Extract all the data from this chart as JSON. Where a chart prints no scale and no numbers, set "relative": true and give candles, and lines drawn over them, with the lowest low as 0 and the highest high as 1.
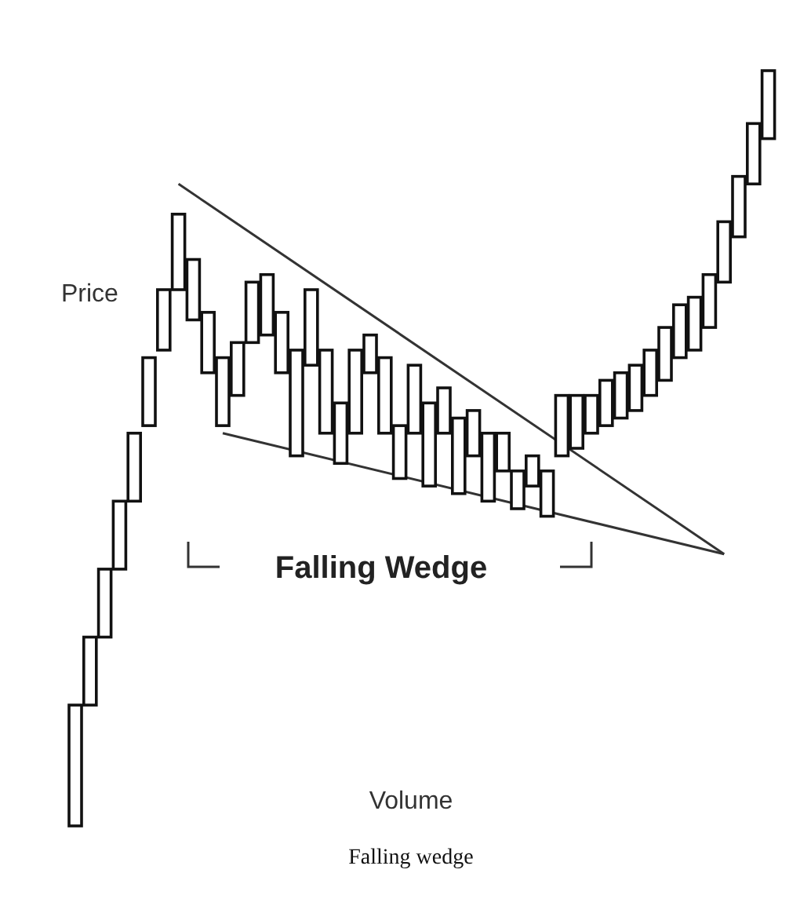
{
  "chart_data": {
    "type": "candlestick",
    "relative": true,
    "ylabel": "Price",
    "xlabel": "Volume",
    "annotations": [
      "Falling Wedge",
      "Falling wedge"
    ],
    "categories": [
      null,
      null,
      null,
      null,
      null,
      null,
      null,
      null,
      null,
      null,
      null,
      null,
      null,
      null,
      null,
      null,
      null,
      null,
      null,
      null,
      null,
      null,
      null,
      null,
      null,
      null,
      null,
      null,
      null,
      null,
      null,
      null,
      null,
      null,
      null,
      null,
      null,
      null,
      null,
      null,
      null,
      null,
      null,
      null,
      null,
      null,
      null,
      null
    ],
    "ohlc": [
      [
        0,
        0.16,
        0,
        0.16
      ],
      [
        0.16,
        0.25,
        0.16,
        0.25
      ],
      [
        0.25,
        0.34,
        0.25,
        0.34
      ],
      [
        0.34,
        0.43,
        0.34,
        0.43
      ],
      [
        0.43,
        0.52,
        0.43,
        0.52
      ],
      [
        0.53,
        0.62,
        0.53,
        0.62
      ],
      [
        0.63,
        0.71,
        0.63,
        0.71
      ],
      [
        0.71,
        0.81,
        0.71,
        0.81
      ],
      [
        0.67,
        0.75,
        0.67,
        0.75
      ],
      [
        0.6,
        0.68,
        0.6,
        0.68
      ],
      [
        0.53,
        0.62,
        0.53,
        0.62
      ],
      [
        0.57,
        0.64,
        0.57,
        0.64
      ],
      [
        0.64,
        0.72,
        0.64,
        0.72
      ],
      [
        0.65,
        0.73,
        0.65,
        0.73
      ],
      [
        0.6,
        0.68,
        0.6,
        0.68
      ],
      [
        0.49,
        0.63,
        0.49,
        0.63
      ],
      [
        0.61,
        0.71,
        0.61,
        0.71
      ],
      [
        0.52,
        0.63,
        0.52,
        0.63
      ],
      [
        0.48,
        0.56,
        0.48,
        0.56
      ],
      [
        0.52,
        0.63,
        0.52,
        0.63
      ],
      [
        0.6,
        0.65,
        0.6,
        0.65
      ],
      [
        0.52,
        0.62,
        0.52,
        0.62
      ],
      [
        0.46,
        0.53,
        0.46,
        0.53
      ],
      [
        0.52,
        0.61,
        0.52,
        0.61
      ],
      [
        0.45,
        0.56,
        0.45,
        0.56
      ],
      [
        0.52,
        0.58,
        0.52,
        0.58
      ],
      [
        0.44,
        0.54,
        0.44,
        0.54
      ],
      [
        0.49,
        0.55,
        0.49,
        0.55
      ],
      [
        0.43,
        0.52,
        0.43,
        0.52
      ],
      [
        0.47,
        0.52,
        0.47,
        0.52
      ],
      [
        0.42,
        0.47,
        0.42,
        0.47
      ],
      [
        0.45,
        0.49,
        0.45,
        0.49
      ],
      [
        0.41,
        0.47,
        0.41,
        0.47
      ],
      [
        0.49,
        0.57,
        0.49,
        0.57
      ],
      [
        0.5,
        0.57,
        0.5,
        0.57
      ],
      [
        0.52,
        0.57,
        0.52,
        0.57
      ],
      [
        0.53,
        0.59,
        0.53,
        0.59
      ],
      [
        0.54,
        0.6,
        0.54,
        0.6
      ],
      [
        0.55,
        0.61,
        0.55,
        0.61
      ],
      [
        0.57,
        0.63,
        0.57,
        0.63
      ],
      [
        0.59,
        0.66,
        0.59,
        0.66
      ],
      [
        0.62,
        0.69,
        0.62,
        0.69
      ],
      [
        0.63,
        0.7,
        0.63,
        0.7
      ],
      [
        0.66,
        0.73,
        0.66,
        0.73
      ],
      [
        0.72,
        0.8,
        0.72,
        0.8
      ],
      [
        0.78,
        0.86,
        0.78,
        0.86
      ],
      [
        0.85,
        0.93,
        0.85,
        0.93
      ],
      [
        0.91,
        1,
        0.91,
        1
      ]
    ],
    "series": [
      {
        "type": "line",
        "color": "#333333",
        "values": [
          null,
          null,
          null,
          null,
          null,
          null,
          null,
          0.85,
          null,
          null,
          null,
          null,
          null,
          null,
          null,
          null,
          null,
          null,
          null,
          null,
          null,
          null,
          null,
          null,
          null,
          null,
          null,
          null,
          null,
          null,
          null,
          null,
          null,
          null,
          null,
          null,
          null,
          null,
          null,
          null,
          null,
          null,
          null,
          null,
          0.36,
          null,
          null,
          null
        ]
      },
      {
        "type": "line",
        "color": "#333333",
        "values": [
          null,
          null,
          null,
          null,
          null,
          null,
          null,
          null,
          null,
          null,
          0.52,
          null,
          null,
          null,
          null,
          null,
          null,
          null,
          null,
          null,
          null,
          null,
          null,
          null,
          null,
          null,
          null,
          null,
          null,
          null,
          null,
          null,
          null,
          null,
          null,
          null,
          null,
          null,
          null,
          null,
          null,
          null,
          null,
          null,
          0.36,
          null,
          null,
          null
        ]
      }
    ]
  }
}
